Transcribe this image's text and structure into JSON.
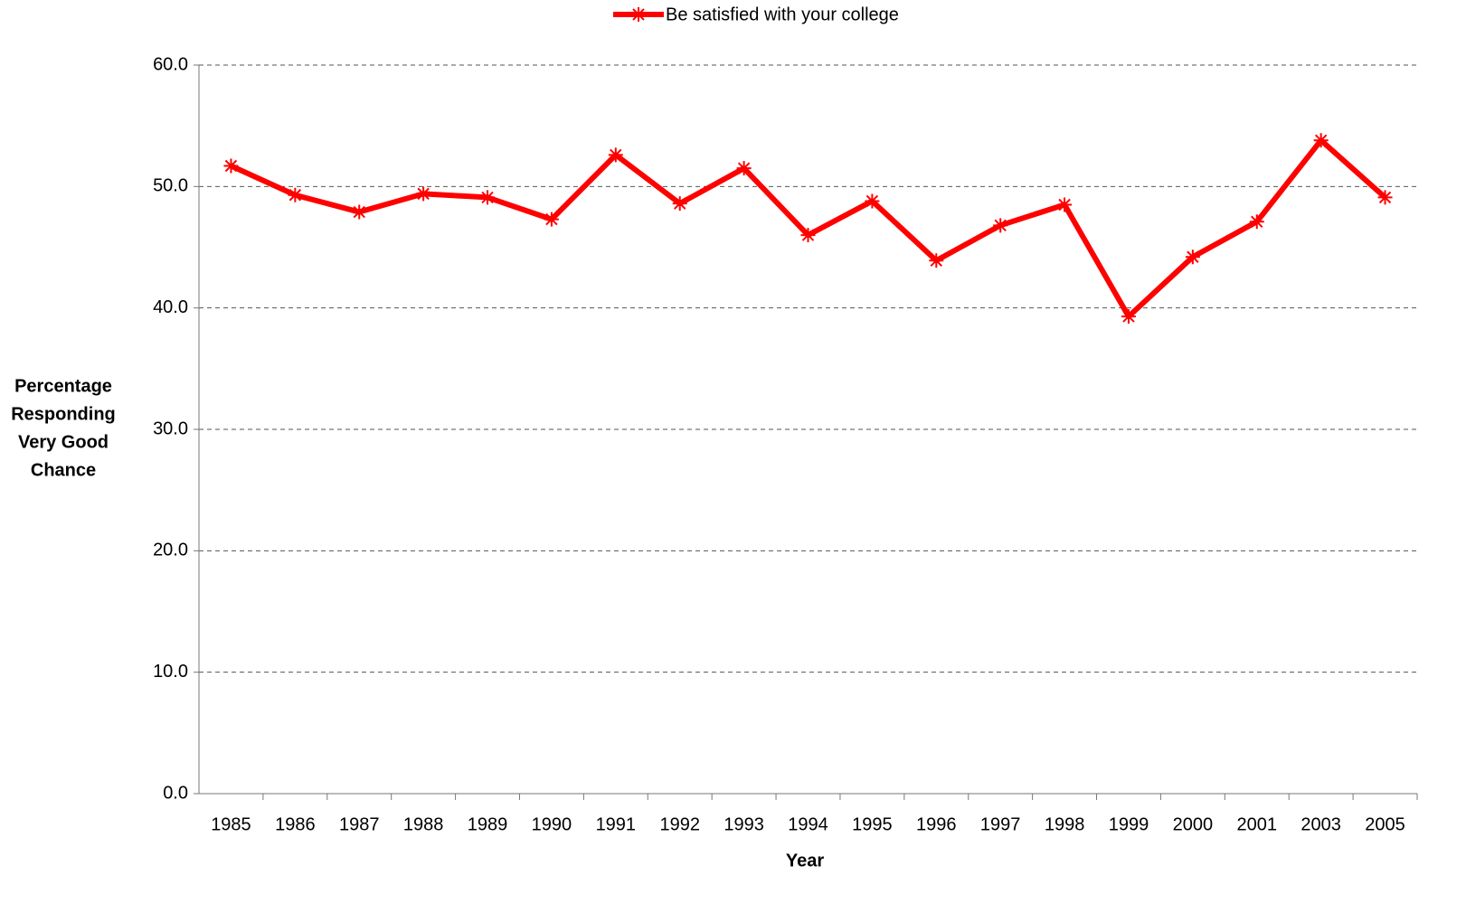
{
  "chart_data": {
    "type": "line",
    "categories": [
      "1985",
      "1986",
      "1987",
      "1988",
      "1989",
      "1990",
      "1991",
      "1992",
      "1993",
      "1994",
      "1995",
      "1996",
      "1997",
      "1998",
      "1999",
      "2000",
      "2001",
      "2003",
      "2005"
    ],
    "series": [
      {
        "name": "Be satisfied with your college",
        "color": "#ff0000",
        "values": [
          51.7,
          49.3,
          47.9,
          49.4,
          49.1,
          47.3,
          52.6,
          48.6,
          51.5,
          46.0,
          48.8,
          43.9,
          46.8,
          48.5,
          39.3,
          44.2,
          47.1,
          53.8,
          49.1
        ]
      }
    ],
    "ylim": [
      0,
      60
    ],
    "yticks": [
      {
        "value": 0,
        "label": "0.0"
      },
      {
        "value": 10,
        "label": "10.0"
      },
      {
        "value": 20,
        "label": "20.0"
      },
      {
        "value": 30,
        "label": "30.0"
      },
      {
        "value": 40,
        "label": "40.0"
      },
      {
        "value": 50,
        "label": "50.0"
      },
      {
        "value": 60,
        "label": "60.0"
      }
    ],
    "x_label": "Year",
    "y_label": [
      "Percentage",
      "Responding",
      "Very Good",
      "Chance"
    ],
    "grid": true,
    "legend": "top"
  }
}
